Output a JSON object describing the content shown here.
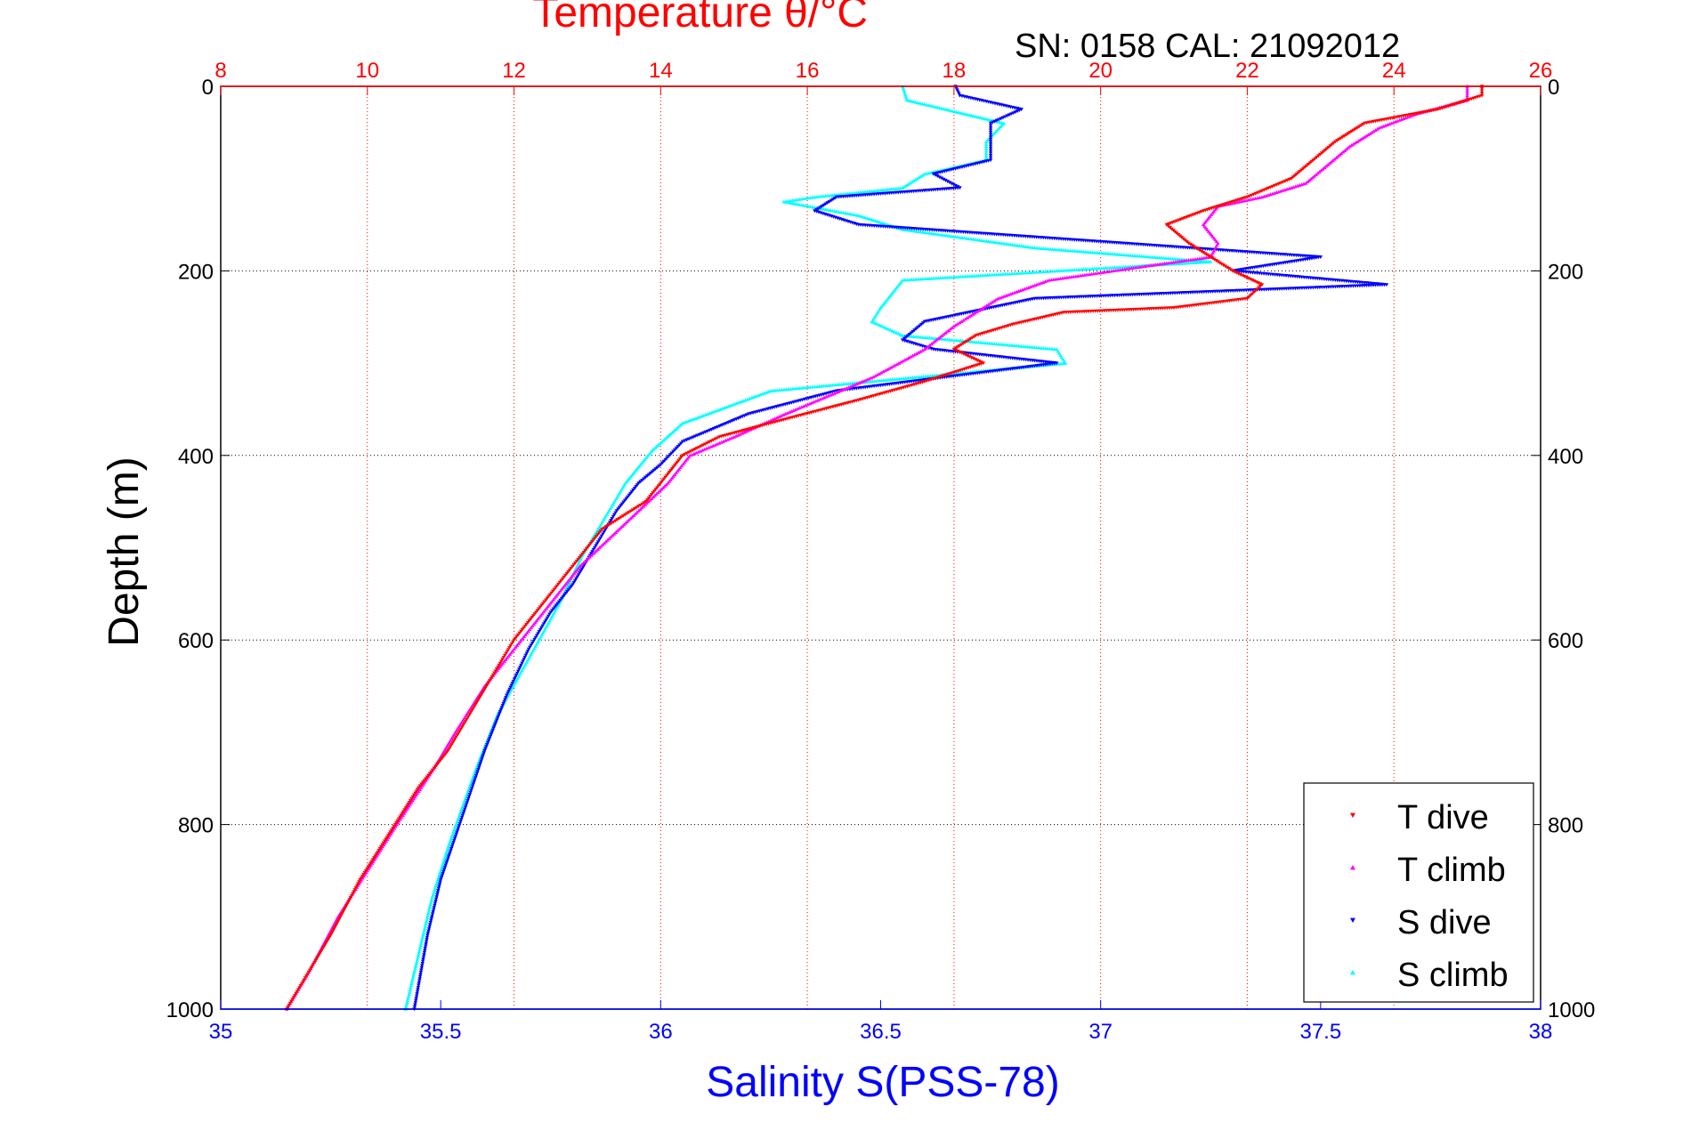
{
  "chart_data": {
    "type": "scatter",
    "title": "Temperature θ/°C",
    "subtitle": "SN: 0158  CAL: 21092012",
    "ylabel": "Depth (m)",
    "xlabel": "Salinity S(PSS-78)",
    "x2label": "Temperature θ/°C",
    "ylim": [
      0,
      1000
    ],
    "y_reversed": true,
    "y_ticks": [
      "0",
      "200",
      "400",
      "600",
      "800",
      "1000"
    ],
    "salinity_xlim": [
      35,
      38
    ],
    "salinity_ticks": [
      "35",
      "35.5",
      "36",
      "36.5",
      "37",
      "37.5",
      "38"
    ],
    "temperature_xlim": [
      8,
      26
    ],
    "temperature_ticks": [
      "8",
      "10",
      "12",
      "14",
      "16",
      "18",
      "20",
      "22",
      "24",
      "26"
    ],
    "grid": true,
    "legend_position": "bottom-right",
    "series": [
      {
        "name": "T dive",
        "axis": "temperature",
        "color": "#ff0000",
        "marker": "triangle-down",
        "points": [
          [
            25.2,
            0
          ],
          [
            25.2,
            10
          ],
          [
            24.6,
            25
          ],
          [
            23.6,
            40
          ],
          [
            23.2,
            60
          ],
          [
            22.9,
            80
          ],
          [
            22.6,
            100
          ],
          [
            22.0,
            120
          ],
          [
            21.4,
            135
          ],
          [
            20.9,
            150
          ],
          [
            21.2,
            170
          ],
          [
            21.5,
            185
          ],
          [
            21.8,
            200
          ],
          [
            22.2,
            215
          ],
          [
            22.0,
            230
          ],
          [
            21.0,
            240
          ],
          [
            19.5,
            245
          ],
          [
            18.8,
            258
          ],
          [
            18.3,
            270
          ],
          [
            18.0,
            285
          ],
          [
            18.4,
            300
          ],
          [
            17.6,
            320
          ],
          [
            16.7,
            340
          ],
          [
            15.5,
            365
          ],
          [
            14.8,
            380
          ],
          [
            14.3,
            400
          ],
          [
            14.1,
            420
          ],
          [
            13.8,
            450
          ],
          [
            13.2,
            480
          ],
          [
            12.7,
            530
          ],
          [
            12.3,
            570
          ],
          [
            12.0,
            600
          ],
          [
            11.7,
            640
          ],
          [
            11.4,
            680
          ],
          [
            11.1,
            720
          ],
          [
            10.7,
            760
          ],
          [
            10.3,
            810
          ],
          [
            9.9,
            860
          ],
          [
            9.5,
            920
          ],
          [
            9.2,
            960
          ],
          [
            8.9,
            1000
          ]
        ]
      },
      {
        "name": "T climb",
        "axis": "temperature",
        "color": "#ff00ff",
        "marker": "triangle-up",
        "points": [
          [
            25.0,
            0
          ],
          [
            25.0,
            15
          ],
          [
            24.3,
            30
          ],
          [
            23.8,
            45
          ],
          [
            23.4,
            65
          ],
          [
            23.1,
            85
          ],
          [
            22.8,
            105
          ],
          [
            22.2,
            120
          ],
          [
            21.6,
            130
          ],
          [
            21.4,
            150
          ],
          [
            21.6,
            170
          ],
          [
            21.5,
            185
          ],
          [
            20.6,
            195
          ],
          [
            19.3,
            210
          ],
          [
            18.6,
            230
          ],
          [
            18.0,
            260
          ],
          [
            17.6,
            285
          ],
          [
            16.9,
            315
          ],
          [
            15.7,
            355
          ],
          [
            15.0,
            380
          ],
          [
            14.4,
            400
          ],
          [
            14.1,
            430
          ],
          [
            13.7,
            460
          ],
          [
            13.3,
            490
          ],
          [
            12.9,
            520
          ],
          [
            12.5,
            560
          ],
          [
            12.1,
            600
          ],
          [
            11.6,
            650
          ],
          [
            11.2,
            700
          ],
          [
            10.9,
            740
          ],
          [
            10.4,
            800
          ],
          [
            10.0,
            850
          ],
          [
            9.6,
            900
          ],
          [
            9.2,
            960
          ],
          [
            8.9,
            1000
          ]
        ]
      },
      {
        "name": "S dive",
        "axis": "salinity",
        "color": "#0000ff",
        "marker": "triangle-down",
        "points": [
          [
            36.67,
            0
          ],
          [
            36.68,
            10
          ],
          [
            36.82,
            25
          ],
          [
            36.75,
            40
          ],
          [
            36.75,
            60
          ],
          [
            36.75,
            80
          ],
          [
            36.62,
            95
          ],
          [
            36.68,
            110
          ],
          [
            36.4,
            120
          ],
          [
            36.35,
            135
          ],
          [
            36.45,
            150
          ],
          [
            36.9,
            165
          ],
          [
            37.5,
            185
          ],
          [
            37.3,
            200
          ],
          [
            37.65,
            215
          ],
          [
            36.85,
            230
          ],
          [
            36.6,
            255
          ],
          [
            36.55,
            275
          ],
          [
            36.62,
            285
          ],
          [
            36.9,
            300
          ],
          [
            36.4,
            330
          ],
          [
            36.2,
            355
          ],
          [
            36.05,
            385
          ],
          [
            36.0,
            410
          ],
          [
            35.95,
            430
          ],
          [
            35.9,
            460
          ],
          [
            35.85,
            500
          ],
          [
            35.8,
            540
          ],
          [
            35.75,
            570
          ],
          [
            35.7,
            610
          ],
          [
            35.65,
            660
          ],
          [
            35.6,
            720
          ],
          [
            35.55,
            790
          ],
          [
            35.5,
            860
          ],
          [
            35.47,
            920
          ],
          [
            35.44,
            1000
          ]
        ]
      },
      {
        "name": "S climb",
        "axis": "salinity",
        "color": "#00ffff",
        "marker": "triangle-up",
        "points": [
          [
            36.55,
            0
          ],
          [
            36.56,
            15
          ],
          [
            36.78,
            40
          ],
          [
            36.74,
            60
          ],
          [
            36.74,
            80
          ],
          [
            36.6,
            95
          ],
          [
            36.55,
            110
          ],
          [
            36.35,
            120
          ],
          [
            36.28,
            125
          ],
          [
            36.45,
            140
          ],
          [
            36.55,
            155
          ],
          [
            36.85,
            175
          ],
          [
            37.25,
            190
          ],
          [
            36.9,
            200
          ],
          [
            36.55,
            210
          ],
          [
            36.5,
            240
          ],
          [
            36.48,
            255
          ],
          [
            36.55,
            270
          ],
          [
            36.9,
            285
          ],
          [
            36.92,
            300
          ],
          [
            36.25,
            330
          ],
          [
            36.05,
            365
          ],
          [
            35.98,
            395
          ],
          [
            35.92,
            430
          ],
          [
            35.87,
            470
          ],
          [
            35.82,
            510
          ],
          [
            35.77,
            560
          ],
          [
            35.7,
            620
          ],
          [
            35.63,
            680
          ],
          [
            35.58,
            740
          ],
          [
            35.52,
            820
          ],
          [
            35.48,
            880
          ],
          [
            35.45,
            940
          ],
          [
            35.42,
            1000
          ]
        ]
      }
    ]
  }
}
